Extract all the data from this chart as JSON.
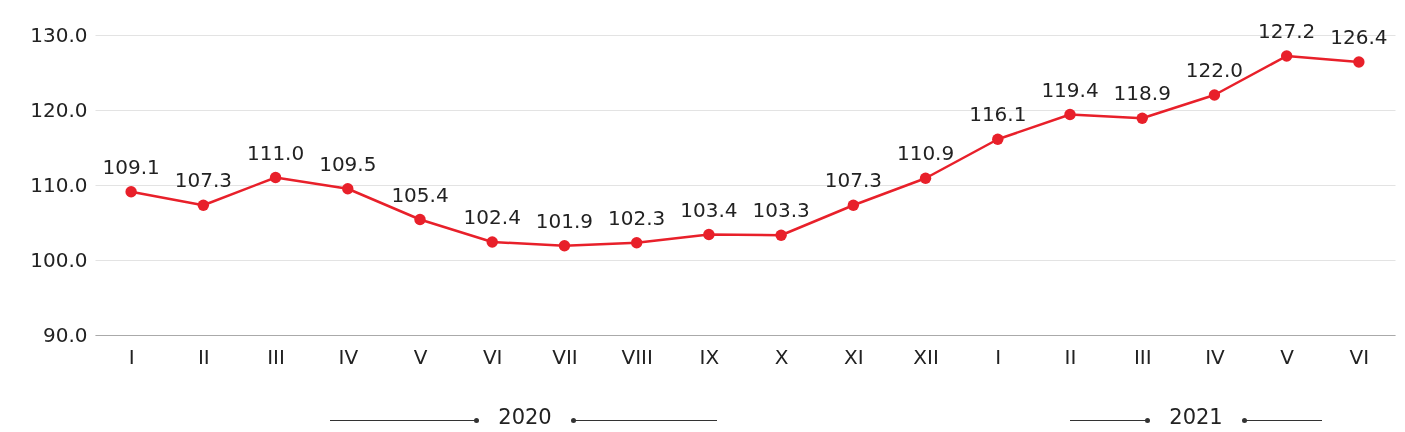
{
  "chart_data": {
    "type": "line",
    "categories": [
      "I",
      "II",
      "III",
      "IV",
      "V",
      "VI",
      "VII",
      "VIII",
      "IX",
      "X",
      "XI",
      "XII",
      "I",
      "II",
      "III",
      "IV",
      "V",
      "VI"
    ],
    "series": [
      {
        "color": "#e8202a",
        "values": [
          109.1,
          107.3,
          111.0,
          109.5,
          105.4,
          102.4,
          101.9,
          102.3,
          103.4,
          103.3,
          107.3,
          110.9,
          116.1,
          119.4,
          118.9,
          122.0,
          127.2,
          126.4
        ]
      }
    ],
    "ylim": [
      90,
      130
    ],
    "yticks": [
      {
        "value": 90,
        "label": "90.0"
      },
      {
        "value": 100,
        "label": "100.0"
      },
      {
        "value": 110,
        "label": "110.0"
      },
      {
        "value": 120,
        "label": "120.0"
      },
      {
        "value": 130,
        "label": "130.0"
      }
    ],
    "value_labels": [
      "109.1",
      "107.3",
      "111.0",
      "109.5",
      "105.4",
      "102.4",
      "101.9",
      "102.3",
      "103.4",
      "103.3",
      "107.3",
      "110.9",
      "116.1",
      "119.4",
      "118.9",
      "122.0",
      "127.2",
      "126.4"
    ],
    "grid": "y",
    "marker": "circle",
    "line_style": "solid",
    "annotations": [
      "2020",
      "2021"
    ]
  }
}
